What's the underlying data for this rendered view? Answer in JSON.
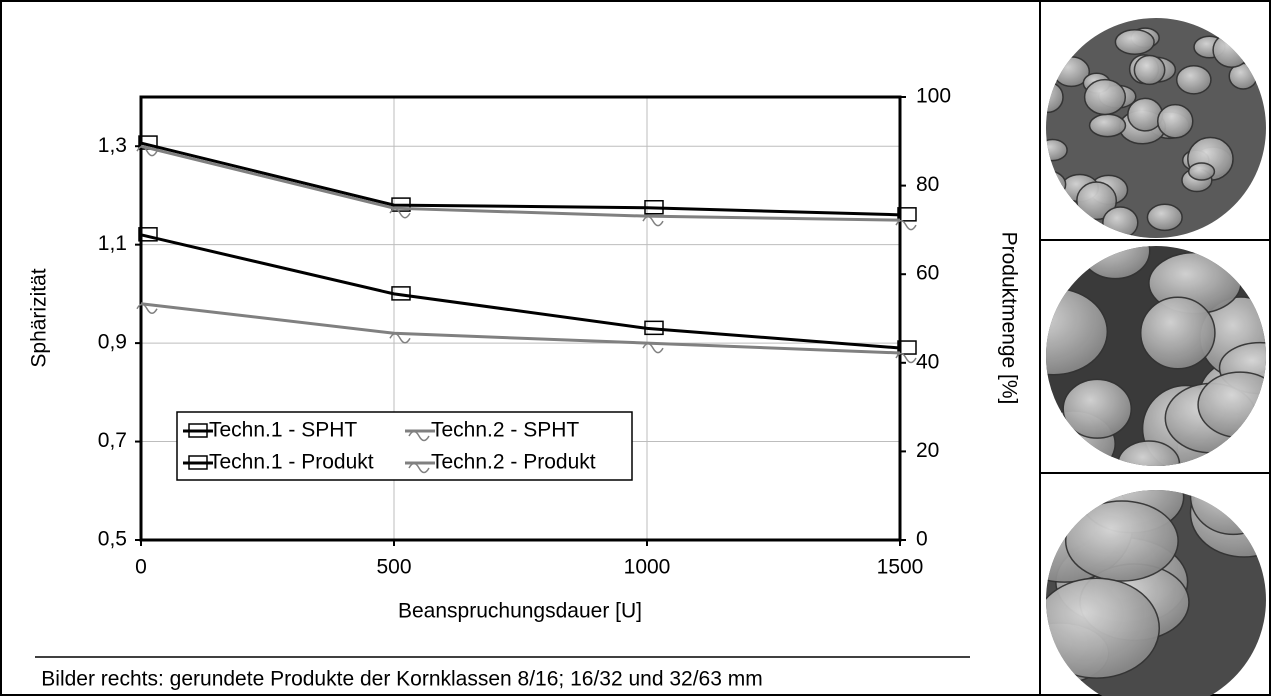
{
  "chart_data": {
    "type": "line",
    "x_label": "Beanspruchungsdauer [U]",
    "y_label": "Sphärizität",
    "y2_label": "Produktmenge [%]",
    "x": [
      0,
      500,
      1000,
      1500
    ],
    "xlim": [
      0,
      1500
    ],
    "xticks": [
      0,
      500,
      1000,
      1500
    ],
    "ylim": [
      0.5,
      1.4
    ],
    "yticks": [
      {
        "value": 0.5,
        "label": "0,5"
      },
      {
        "value": 0.7,
        "label": "0,7"
      },
      {
        "value": 0.9,
        "label": "0,9"
      },
      {
        "value": 1.1,
        "label": "1,1"
      },
      {
        "value": 1.3,
        "label": "1,3"
      }
    ],
    "y2lim": [
      0,
      100
    ],
    "y2ticks": [
      0,
      20,
      40,
      60,
      80,
      100
    ],
    "grid": true,
    "series": [
      {
        "name": "Techn.1 - SPHT",
        "color": "#000000",
        "values": [
          1.12,
          1.0,
          0.93,
          0.89
        ]
      },
      {
        "name": "Techn.2 - SPHT",
        "color": "#808080",
        "values": [
          0.98,
          0.92,
          0.9,
          0.88
        ]
      },
      {
        "name": "Techn.1 - Produkt",
        "color": "#000000",
        "axis": "y2",
        "values": [
          89.6,
          75.6,
          75.0,
          73.4
        ]
      },
      {
        "name": "Techn.2 - Produkt",
        "color": "#808080",
        "axis": "y2",
        "values": [
          88.9,
          74.9,
          73.1,
          72.2
        ]
      }
    ],
    "caption": "Bilder rechts: gerundete Produkte der Kornklassen 8/16; 16/32 und 32/63 mm"
  }
}
